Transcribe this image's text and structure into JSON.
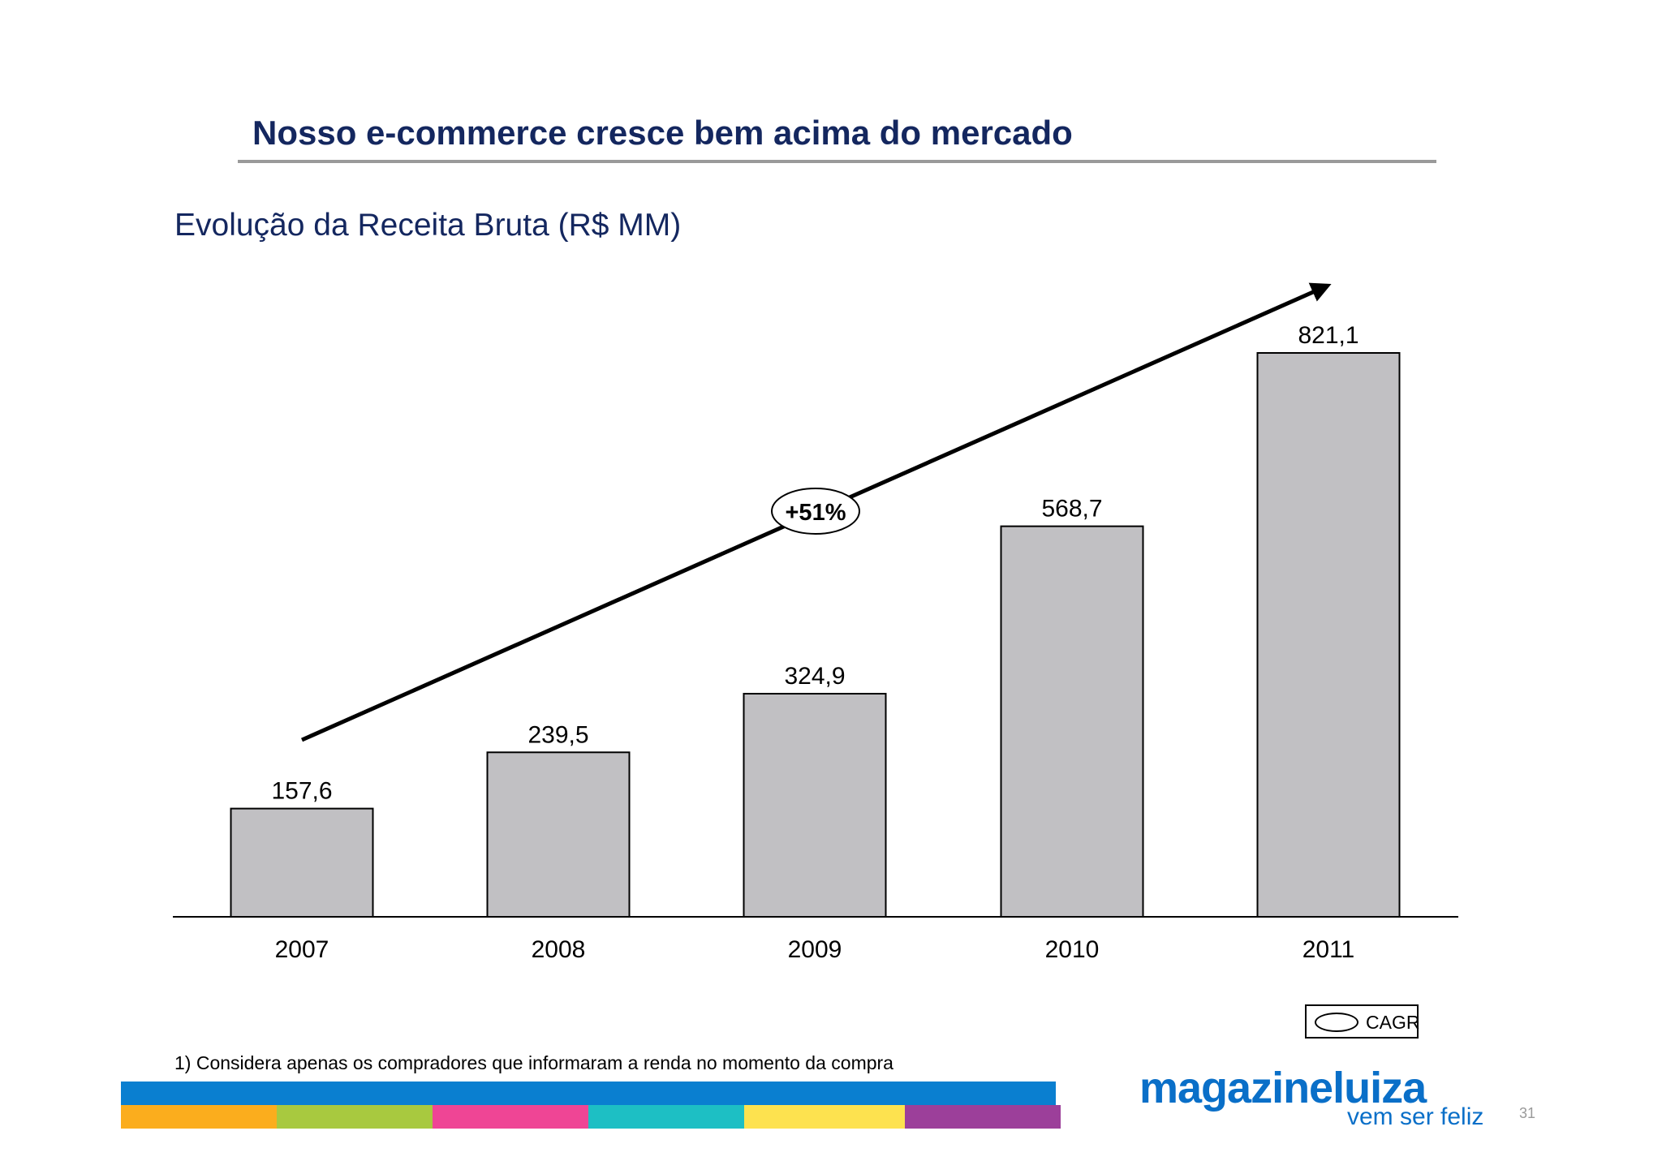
{
  "slide": {
    "title": "Nosso e-commerce cresce bem acima do mercado",
    "footnote": "1) Considera apenas os compradores que informaram a renda no momento da compra",
    "page_number": "31",
    "logo": {
      "name": "magazineluiza",
      "tagline": "vem ser feliz"
    },
    "stripe_colors": [
      "#fbad1d",
      "#a8c93f",
      "#ef4595",
      "#1dbfc4",
      "#fde24f",
      "#9c3f9a"
    ]
  },
  "chart_data": {
    "type": "bar",
    "title": "Evolução da Receita Bruta (R$ MM)",
    "categories": [
      "2007",
      "2008",
      "2009",
      "2010",
      "2011"
    ],
    "values": [
      157.6,
      239.5,
      324.9,
      568.7,
      821.1
    ],
    "value_labels": [
      "157,6",
      "239,5",
      "324,9",
      "568,7",
      "821,1"
    ],
    "bar_color": "#c1c0c3",
    "ylim": [
      0,
      821.1
    ],
    "annotation": {
      "label": "+51%",
      "meaning": "CAGR"
    },
    "legend": {
      "label": "CAGR",
      "position": "bottom-right"
    }
  }
}
